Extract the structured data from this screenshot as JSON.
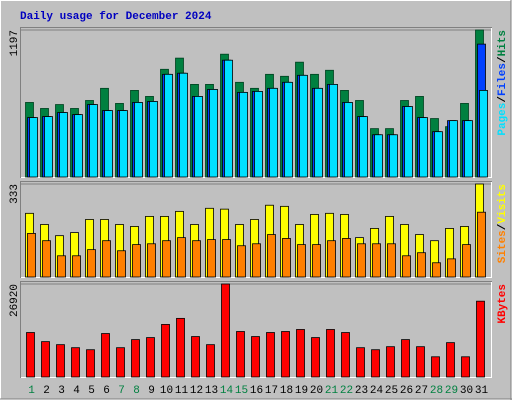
{
  "chart_data": [
    {
      "type": "bar",
      "title": "Daily usage for December 2024",
      "categories": [
        "1",
        "2",
        "3",
        "4",
        "5",
        "6",
        "7",
        "8",
        "9",
        "10",
        "11",
        "12",
        "13",
        "14",
        "15",
        "16",
        "17",
        "18",
        "19",
        "20",
        "21",
        "22",
        "23",
        "24",
        "25",
        "26",
        "27",
        "28",
        "29",
        "30",
        "31"
      ],
      "weekend_color": "#008040",
      "separator": "/",
      "ylim": [
        0,
        1197
      ],
      "yticks": [
        1197
      ],
      "series": [
        {
          "name": "Hits",
          "color": "#008040",
          "values": [
            607,
            558,
            590,
            558,
            623,
            722,
            599,
            705,
            656,
            877,
            968,
            754,
            754,
            1000,
            771,
            722,
            836,
            820,
            935,
            836,
            869,
            705,
            623,
            394,
            394,
            623,
            656,
            476,
            410,
            599,
            1197
          ]
        },
        {
          "name": "Files",
          "color": "#0040ff",
          "values": [
            484,
            492,
            525,
            508,
            590,
            541,
            541,
            607,
            615,
            836,
            845,
            656,
            713,
            951,
            689,
            697,
            722,
            771,
            828,
            722,
            754,
            607,
            492,
            344,
            344,
            574,
            484,
            369,
            459,
            459,
            1082
          ]
        },
        {
          "name": "Pages",
          "color": "#00e0ff",
          "values": [
            484,
            492,
            525,
            508,
            590,
            541,
            541,
            607,
            615,
            836,
            845,
            656,
            713,
            951,
            689,
            697,
            722,
            771,
            828,
            722,
            754,
            607,
            492,
            344,
            344,
            574,
            484,
            369,
            459,
            459,
            705
          ]
        }
      ]
    },
    {
      "type": "bar",
      "ylim": [
        0,
        333
      ],
      "yticks": [
        333
      ],
      "series": [
        {
          "name": "Visits",
          "color": "#ffff00",
          "values": [
            228,
            188,
            148,
            159,
            206,
            206,
            188,
            181,
            217,
            217,
            235,
            188,
            246,
            243,
            188,
            206,
            257,
            253,
            188,
            224,
            228,
            224,
            141,
            174,
            217,
            188,
            152,
            130,
            174,
            181,
            333
          ]
        },
        {
          "name": "Sites",
          "color": "#ff8000",
          "values": [
            156,
            130,
            76,
            76,
            98,
            130,
            94,
            116,
            119,
            130,
            141,
            130,
            134,
            134,
            112,
            119,
            152,
            138,
            116,
            116,
            130,
            138,
            119,
            119,
            119,
            76,
            87,
            51,
            65,
            116,
            232
          ]
        }
      ]
    },
    {
      "type": "bar",
      "ylim": [
        0,
        26920
      ],
      "yticks": [
        26920
      ],
      "series": [
        {
          "name": "KBytes",
          "color": "#ff0000",
          "values": [
            12874,
            10241,
            9363,
            8485,
            7900,
            12581,
            8485,
            10826,
            11411,
            15215,
            16970,
            11704,
            9363,
            26920,
            13167,
            11704,
            12874,
            13167,
            13752,
            11411,
            13752,
            12874,
            8485,
            7900,
            8778,
            10826,
            8778,
            5852,
            9948,
            5852,
            21945
          ]
        }
      ]
    }
  ]
}
